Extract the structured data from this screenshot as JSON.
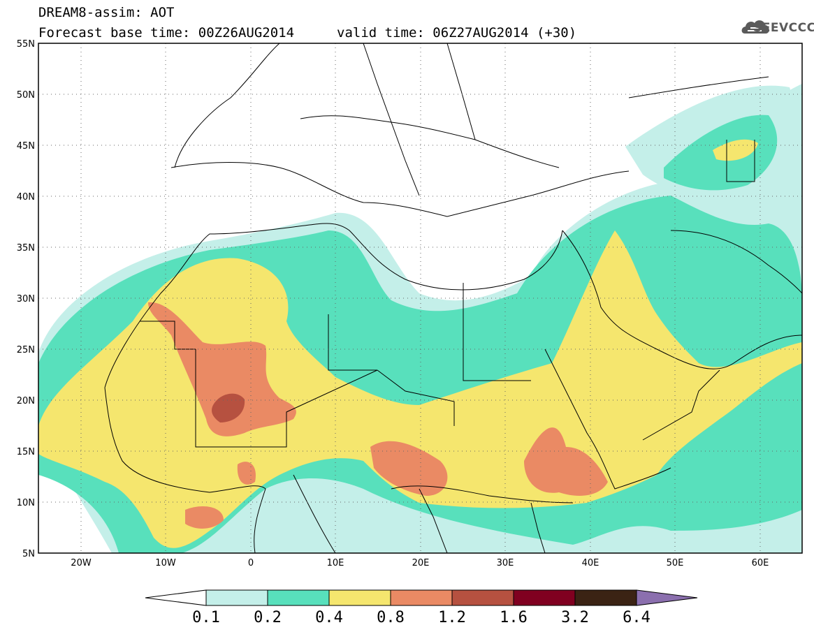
{
  "header": {
    "title": "DREAM8-assim: AOT",
    "base_time": "Forecast base time: 00Z26AUG2014",
    "valid_time": "valid time: 06Z27AUG2014 (+30)"
  },
  "logo": {
    "text": "SEEVCCC",
    "icon": "cloud-logo-icon"
  },
  "map": {
    "variable": "AOT",
    "lon_range": [
      -25,
      65
    ],
    "lat_range": [
      5,
      55
    ],
    "lat_ticks": [
      "5N",
      "10N",
      "15N",
      "20N",
      "25N",
      "30N",
      "35N",
      "40N",
      "45N",
      "50N",
      "55N"
    ],
    "lon_ticks": [
      "20W",
      "10W",
      "0",
      "10E",
      "20E",
      "30E",
      "40E",
      "50E",
      "60E"
    ],
    "grid": "dotted"
  },
  "legend": {
    "levels": [
      "0.1",
      "0.2",
      "0.4",
      "0.8",
      "1.2",
      "1.6",
      "3.2",
      "6.4"
    ],
    "colors": [
      "#c4efe9",
      "#58e0bc",
      "#f5e66e",
      "#ea8a64",
      "#b65140",
      "#800020",
      "#3b2314",
      "#8b6fae"
    ],
    "below_color": "#ffffff"
  }
}
